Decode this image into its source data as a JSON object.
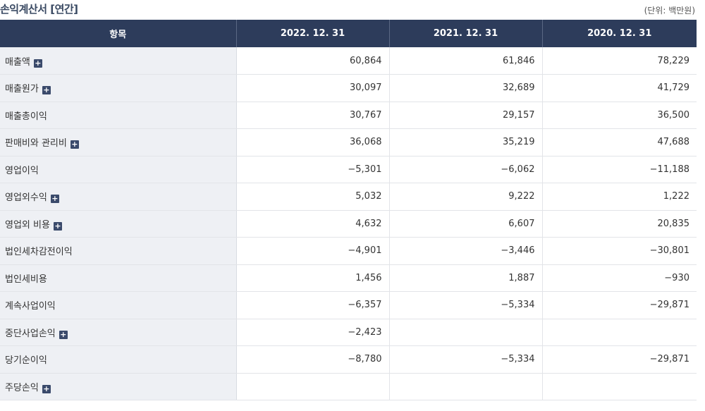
{
  "title": "손익계산서 [연간]",
  "unit": "(단위: 백만원)",
  "headers": [
    "항목",
    "2022. 12. 31",
    "2021. 12. 31",
    "2020. 12. 31"
  ],
  "rows": [
    {
      "label": "매출액",
      "expand": true,
      "v": [
        "60,864",
        "61,846",
        "78,229"
      ]
    },
    {
      "label": "매출원가",
      "expand": true,
      "v": [
        "30,097",
        "32,689",
        "41,729"
      ]
    },
    {
      "label": "매출총이익",
      "expand": false,
      "v": [
        "30,767",
        "29,157",
        "36,500"
      ]
    },
    {
      "label": "판매비와 관리비",
      "expand": true,
      "v": [
        "36,068",
        "35,219",
        "47,688"
      ]
    },
    {
      "label": "영업이익",
      "expand": false,
      "v": [
        "−5,301",
        "−6,062",
        "−11,188"
      ]
    },
    {
      "label": "영업외수익",
      "expand": true,
      "v": [
        "5,032",
        "9,222",
        "1,222"
      ]
    },
    {
      "label": "영업외 비용",
      "expand": true,
      "v": [
        "4,632",
        "6,607",
        "20,835"
      ]
    },
    {
      "label": "법인세차감전이익",
      "expand": false,
      "v": [
        "−4,901",
        "−3,446",
        "−30,801"
      ]
    },
    {
      "label": "법인세비용",
      "expand": false,
      "v": [
        "1,456",
        "1,887",
        "−930"
      ]
    },
    {
      "label": "계속사업이익",
      "expand": false,
      "v": [
        "−6,357",
        "−5,334",
        "−29,871"
      ]
    },
    {
      "label": "중단사업손익",
      "expand": true,
      "v": [
        "−2,423",
        "",
        ""
      ]
    },
    {
      "label": "당기순이익",
      "expand": false,
      "v": [
        "−8,780",
        "−5,334",
        "−29,871"
      ]
    },
    {
      "label": "주당손익",
      "expand": true,
      "v": [
        "",
        "",
        ""
      ]
    }
  ],
  "expand_glyph": "+"
}
